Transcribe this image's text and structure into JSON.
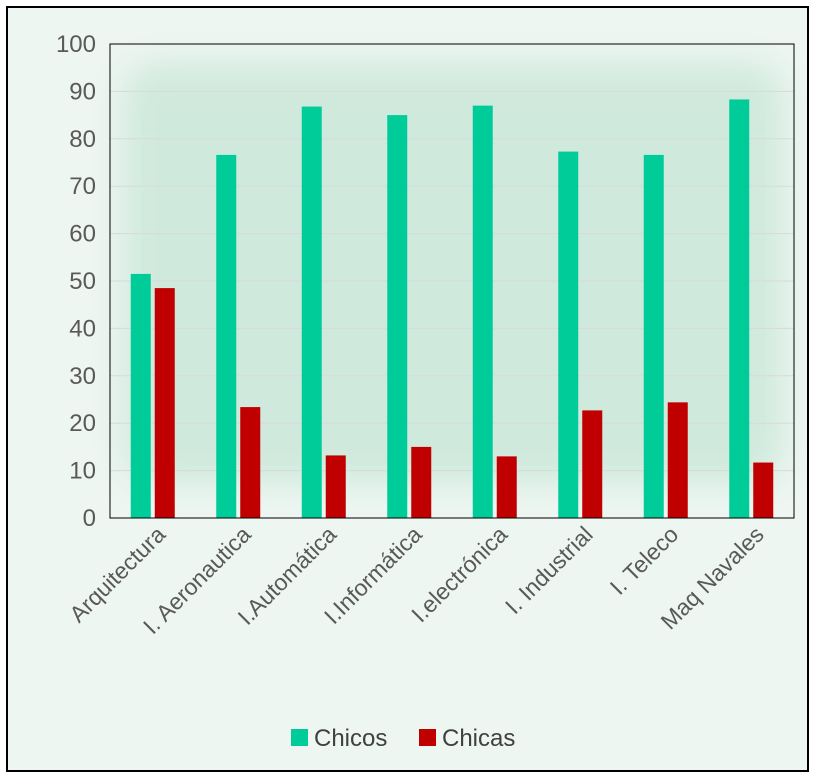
{
  "chart_data": {
    "type": "bar",
    "title": "",
    "xlabel": "",
    "ylabel": "",
    "ylim": [
      0,
      100
    ],
    "yticks": [
      0,
      10,
      20,
      30,
      40,
      50,
      60,
      70,
      80,
      90,
      100
    ],
    "grid": true,
    "legend_position": "bottom",
    "categories": [
      "Arquitectura",
      "I. Aeronautica",
      "I.Automática",
      "I.Informática",
      "I.electrónica",
      "I. Industrial",
      "I. Teleco",
      "Maq Navales"
    ],
    "series": [
      {
        "name": "Chicos",
        "color": "#00cc99",
        "values": [
          51.5,
          76.6,
          86.8,
          85.0,
          87.0,
          77.3,
          76.6,
          88.3
        ]
      },
      {
        "name": "Chicas",
        "color": "#c00000",
        "values": [
          48.5,
          23.4,
          13.2,
          15.0,
          13.0,
          22.7,
          24.4,
          11.7
        ]
      }
    ]
  },
  "colors": {
    "background": "#eef6f2",
    "plot_glow": "#cfe9dc",
    "gridline": "#d9d9d9",
    "axis": "#000000",
    "text": "#595959"
  }
}
